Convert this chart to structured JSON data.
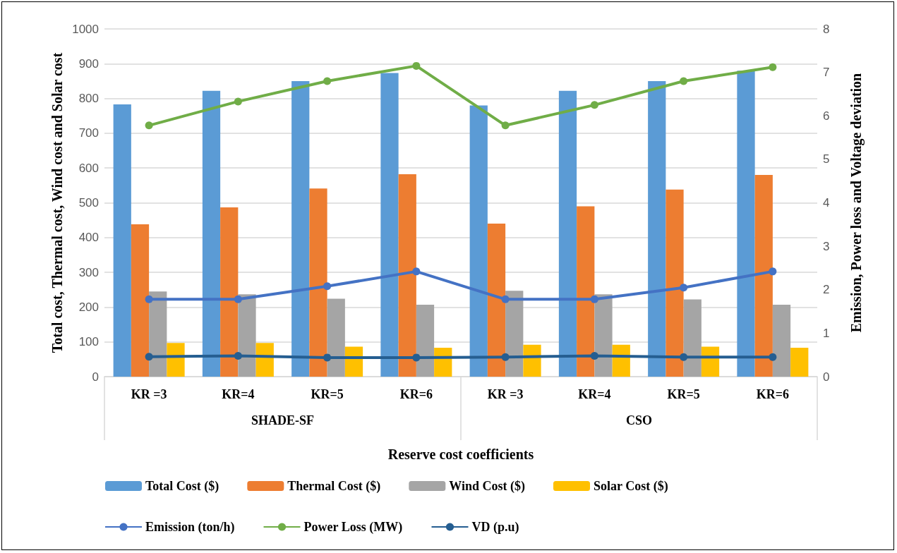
{
  "chart_data": {
    "type": "bar",
    "xlabel": "Reserve cost coefficients",
    "ylabel": "Total cost, Thermal cost, Wind cost and Solar cost",
    "y2label": "Emission, Power loss and Voltage deviation",
    "categories": [
      "KR =3",
      "KR=4",
      "KR=5",
      "KR=6",
      "KR =3",
      "KR=4",
      "KR=5",
      "KR=6"
    ],
    "annotations": [
      "SHADE-SF",
      "CSO"
    ],
    "series": [
      {
        "name": "Total Cost ($)",
        "color": "#5b9bd5",
        "values": [
          783,
          822,
          850,
          873,
          780,
          822,
          850,
          880
        ]
      },
      {
        "name": "Thermal Cost ($)",
        "color": "#ed7d31",
        "values": [
          438,
          487,
          541,
          582,
          440,
          490,
          538,
          580
        ]
      },
      {
        "name": "Wind Cost ($)",
        "color": "#a5a5a5",
        "values": [
          245,
          237,
          224,
          207,
          247,
          237,
          222,
          207
        ]
      },
      {
        "name": "Solar Cost ($)",
        "color": "#ffc000",
        "values": [
          97,
          97,
          86,
          83,
          92,
          92,
          86,
          83
        ]
      },
      {
        "name": "Emission (ton/h)",
        "type": "line",
        "axis": "y2",
        "color": "#4472c4",
        "values": [
          1.78,
          1.78,
          2.08,
          2.42,
          1.78,
          1.78,
          2.05,
          2.42
        ]
      },
      {
        "name": "Power Loss (MW)",
        "type": "line",
        "axis": "y2",
        "color": "#70ad47",
        "values": [
          5.78,
          6.33,
          6.8,
          7.15,
          5.78,
          6.25,
          6.8,
          7.12
        ]
      },
      {
        "name": "VD (p.u)",
        "type": "line",
        "axis": "y2",
        "color": "#255e91",
        "values": [
          0.46,
          0.48,
          0.44,
          0.44,
          0.45,
          0.48,
          0.45,
          0.45
        ]
      }
    ],
    "ylim": [
      0,
      1000
    ],
    "yticks": [
      0,
      100,
      200,
      300,
      400,
      500,
      600,
      700,
      800,
      900,
      1000
    ],
    "y2lim": [
      0,
      8
    ],
    "y2ticks": [
      0,
      1,
      2,
      3,
      4,
      5,
      6,
      7,
      8
    ],
    "grid": "y",
    "legend": "bottom",
    "marker": "circle"
  }
}
